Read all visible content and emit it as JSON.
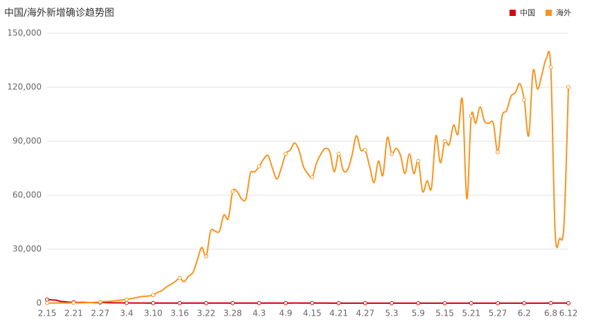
{
  "chart_data": {
    "type": "line",
    "title": "中国/海外新增确诊趋势图",
    "categories": [
      "2.15",
      null,
      null,
      null,
      null,
      null,
      "2.21",
      null,
      null,
      null,
      null,
      null,
      "2.27",
      null,
      null,
      null,
      null,
      null,
      "3.4",
      null,
      null,
      null,
      null,
      null,
      "3.10",
      null,
      null,
      null,
      null,
      null,
      "3.16",
      null,
      null,
      null,
      null,
      null,
      "3.22",
      null,
      null,
      null,
      null,
      null,
      "3.28",
      null,
      null,
      null,
      null,
      null,
      "4.3",
      null,
      null,
      null,
      null,
      null,
      "4.9",
      null,
      null,
      null,
      null,
      null,
      "4.15",
      null,
      null,
      null,
      null,
      null,
      "4.21",
      null,
      null,
      null,
      null,
      null,
      "4.27",
      null,
      null,
      null,
      null,
      null,
      "5.3",
      null,
      null,
      null,
      null,
      null,
      "5.9",
      null,
      null,
      null,
      null,
      null,
      "5.15",
      null,
      null,
      null,
      null,
      null,
      "5.21",
      null,
      null,
      null,
      null,
      null,
      "5.27",
      null,
      null,
      null,
      null,
      null,
      "6.2",
      null,
      null,
      null,
      null,
      null,
      "6.8",
      null,
      null,
      null,
      "6.12"
    ],
    "series": [
      {
        "name": "中国",
        "color": "#d7000f",
        "values": [
          2000,
          1800,
          1700,
          1000,
          800,
          600,
          500,
          400,
          500,
          400,
          400,
          300,
          400,
          400,
          300,
          200,
          200,
          150,
          140,
          100,
          100,
          80,
          80,
          60,
          60,
          50,
          50,
          40,
          40,
          40,
          40,
          40,
          40,
          40,
          50,
          60,
          50,
          50,
          60,
          70,
          50,
          40,
          40,
          40,
          40,
          40,
          40,
          40,
          40,
          40,
          40,
          40,
          40,
          40,
          40,
          40,
          100,
          60,
          50,
          40,
          40,
          30,
          30,
          30,
          20,
          20,
          20,
          20,
          20,
          20,
          10,
          10,
          10,
          10,
          10,
          10,
          10,
          10,
          10,
          10,
          10,
          10,
          10,
          10,
          10,
          10,
          10,
          10,
          10,
          10,
          10,
          10,
          10,
          10,
          10,
          10,
          10,
          10,
          10,
          10,
          10,
          10,
          10,
          10,
          10,
          10,
          10,
          10,
          10,
          10,
          10,
          10,
          10,
          10,
          50,
          50,
          50,
          40,
          20
        ]
      },
      {
        "name": "海外",
        "color": "#f7941d",
        "values": [
          50,
          70,
          80,
          100,
          100,
          150,
          200,
          200,
          250,
          300,
          400,
          500,
          700,
          900,
          1000,
          1200,
          1500,
          1800,
          2000,
          2500,
          3000,
          3500,
          3800,
          4000,
          4500,
          6000,
          7000,
          9000,
          10500,
          12000,
          14000,
          12000,
          15000,
          17000,
          24000,
          31000,
          26000,
          40000,
          40000,
          40000,
          49000,
          47000,
          62000,
          62000,
          58000,
          58000,
          72000,
          73000,
          76000,
          80000,
          82000,
          75000,
          69000,
          75000,
          83000,
          85000,
          89000,
          85000,
          76000,
          72000,
          70000,
          78000,
          83000,
          86000,
          84000,
          73000,
          83000,
          74000,
          74000,
          82000,
          93000,
          85000,
          85000,
          76000,
          67000,
          79000,
          71000,
          92000,
          83000,
          86000,
          82000,
          72000,
          83000,
          72000,
          79000,
          62000,
          68000,
          64000,
          93000,
          78000,
          90000,
          88000,
          99000,
          94000,
          113000,
          58000,
          104000,
          100000,
          109000,
          101000,
          100000,
          100000,
          84000,
          104000,
          107000,
          115000,
          117000,
          122000,
          113000,
          93000,
          129000,
          119000,
          127000,
          136000,
          131000,
          39000,
          36000,
          44000,
          120000
        ]
      }
    ],
    "ylim": [
      0,
      150000
    ],
    "yticks": [
      0,
      {
        "value": 30000,
        "label": "30,000"
      },
      {
        "value": 60000,
        "label": "60,000"
      },
      {
        "value": 90000,
        "label": "90,000"
      },
      {
        "value": 120000,
        "label": "120,000"
      },
      {
        "value": 150000,
        "label": "150,000"
      }
    ],
    "grid": true,
    "legend": "top-right"
  }
}
